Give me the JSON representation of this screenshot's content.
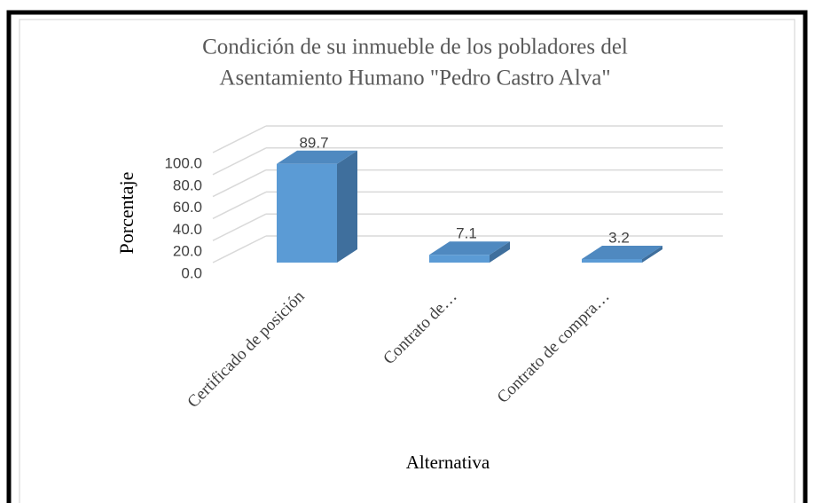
{
  "chart_data": {
    "type": "bar3d",
    "title": [
      "Condición de su inmueble de los pobladores del",
      "Asentamiento Humano \"Pedro Castro Alva\""
    ],
    "xlabel": "Alternativa",
    "ylabel": "Porcentaje",
    "categories": [
      "Certificado de posición",
      "Contrato de…",
      "Contrato de compra…"
    ],
    "values": [
      89.7,
      7.1,
      3.2
    ],
    "color": "#5b9bd5",
    "ylim": [
      0,
      100
    ],
    "yticks": [
      {
        "value": 0,
        "label": "0.0"
      },
      {
        "value": 20,
        "label": "20.0"
      },
      {
        "value": 40,
        "label": "40.0"
      },
      {
        "value": 60,
        "label": "60.0"
      },
      {
        "value": 80,
        "label": "80.0"
      },
      {
        "value": 100,
        "label": "100.0"
      }
    ],
    "grid": true
  }
}
